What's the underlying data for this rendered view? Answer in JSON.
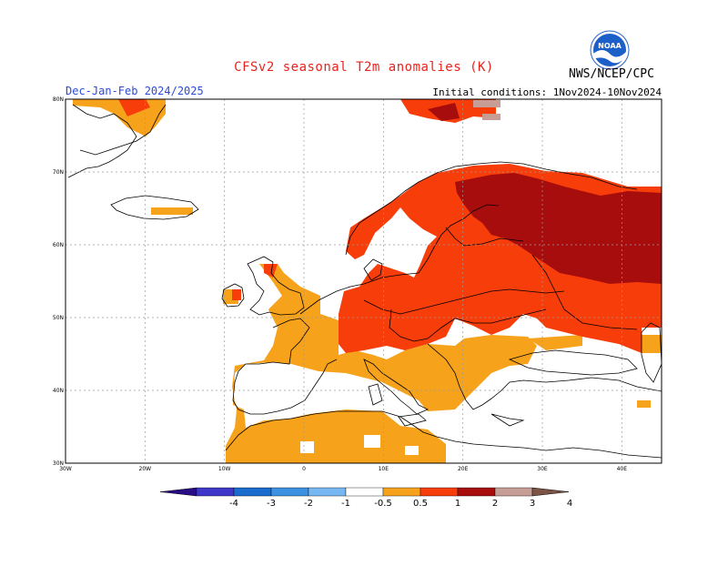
{
  "header": {
    "title": "CFSv2 seasonal T2m anomalies (K)",
    "period": "Dec-Jan-Feb 2024/2025",
    "initial_conditions": "Initial conditions: 1Nov2024-10Nov2024",
    "agency": "NWS/NCEP/CPC",
    "logo_text": "NOAA"
  },
  "map": {
    "region": "Europe",
    "lat_labels": [
      "80N",
      "70N",
      "60N",
      "50N",
      "40N",
      "30N"
    ],
    "lon_labels": [
      "30W",
      "20W",
      "10W",
      "0",
      "10E",
      "20E",
      "30E",
      "40E"
    ],
    "lat_range": [
      30,
      80
    ],
    "lon_range": [
      -30,
      45
    ],
    "grid": "dotted"
  },
  "colorbar": {
    "labels": [
      "-4",
      "-3",
      "-2",
      "-1",
      "-0.5",
      "0.5",
      "1",
      "2",
      "3",
      "4"
    ],
    "colors": [
      "#2a0d86",
      "#3f37c9",
      "#1a6ccf",
      "#3d91e3",
      "#77b8f3",
      "#ffffff",
      "#f7a21b",
      "#f73d0a",
      "#a80d0d",
      "#c79e95",
      "#7c5446"
    ],
    "units": "K"
  }
}
